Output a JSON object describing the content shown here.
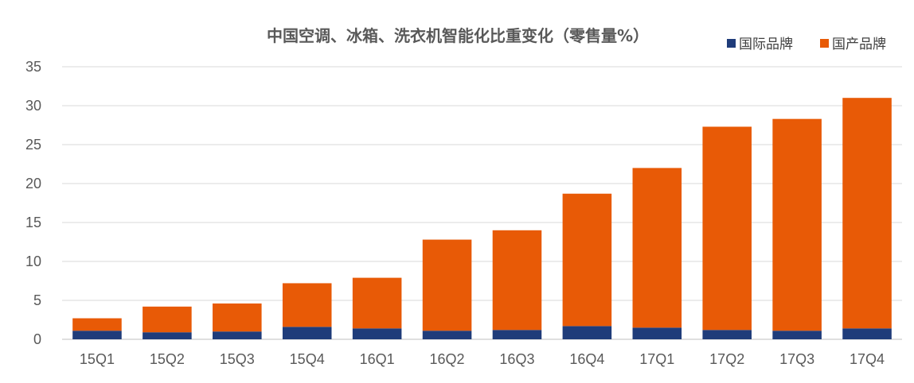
{
  "chart_data": {
    "type": "bar",
    "stacked": true,
    "title": "中国空调、冰箱、洗衣机智能化比重变化（零售量%）",
    "categories": [
      "15Q1",
      "15Q2",
      "15Q3",
      "15Q4",
      "16Q1",
      "16Q2",
      "16Q3",
      "16Q4",
      "17Q1",
      "17Q2",
      "17Q3",
      "17Q4"
    ],
    "series": [
      {
        "name": "国际品牌",
        "color": "#1f3c7a",
        "values": [
          1.1,
          0.9,
          1.0,
          1.6,
          1.4,
          1.1,
          1.2,
          1.7,
          1.5,
          1.2,
          1.1,
          1.4
        ]
      },
      {
        "name": "国产品牌",
        "color": "#e85a06",
        "values": [
          1.6,
          3.3,
          3.6,
          5.6,
          6.5,
          11.7,
          12.8,
          17.0,
          20.5,
          26.1,
          27.2,
          29.6
        ]
      }
    ],
    "yticks": [
      "0",
      "5",
      "10",
      "15",
      "20",
      "25",
      "30",
      "35"
    ],
    "ylim": [
      0,
      35
    ],
    "grid": true,
    "legend_position": "top-right",
    "xlabel": "",
    "ylabel": ""
  }
}
